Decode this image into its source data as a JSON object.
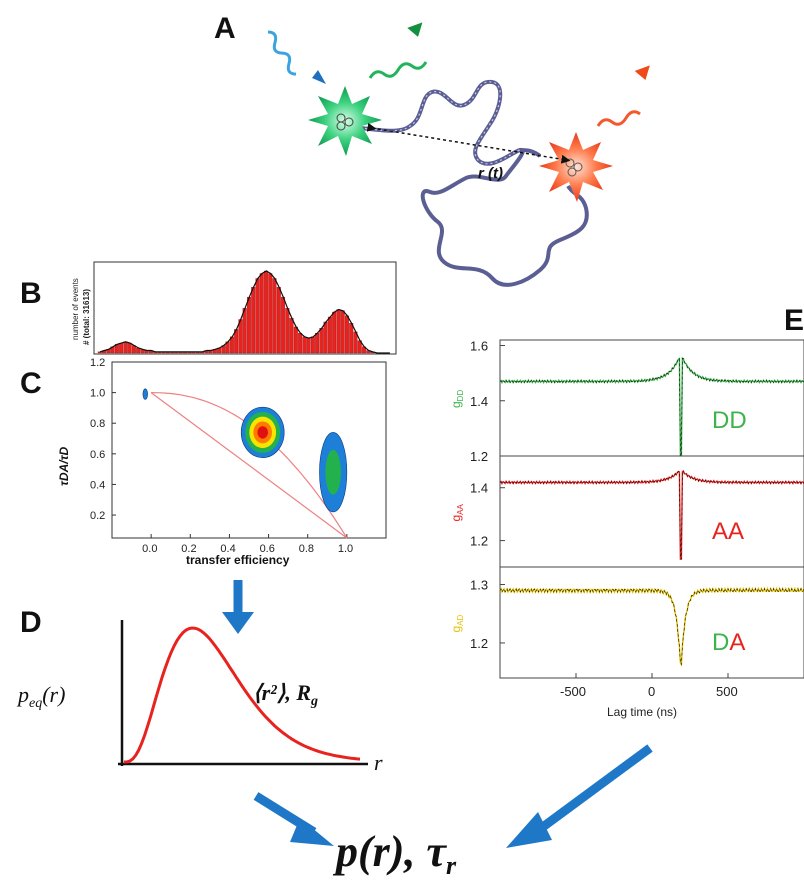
{
  "panels": {
    "a": "A",
    "b": "B",
    "c": "C",
    "d": "D",
    "e": "E"
  },
  "panel_a": {
    "distance_label": "r (t)"
  },
  "panel_b": {
    "ylabel": "number of events",
    "ylabel_total": "# (total: 31613)",
    "bars": [
      1,
      2,
      3,
      5,
      7,
      8,
      9,
      8,
      6,
      4,
      3,
      2,
      2,
      1,
      1,
      1,
      1,
      1,
      1,
      1,
      1,
      1,
      1,
      1,
      1,
      2,
      2,
      3,
      4,
      6,
      9,
      13,
      19,
      27,
      36,
      45,
      53,
      60,
      64,
      66,
      64,
      60,
      53,
      45,
      36,
      28,
      21,
      16,
      13,
      12,
      13,
      16,
      20,
      25,
      29,
      33,
      35,
      34,
      30,
      24,
      17,
      10,
      5,
      2,
      1,
      0,
      0,
      0,
      0
    ]
  },
  "panel_c": {
    "xlabel": "transfer efficiency",
    "ylabel": "τDA/τD",
    "xticks": [
      "0.0",
      "0.2",
      "0.4",
      "0.6",
      "0.8",
      "1.0"
    ],
    "yticks": [
      "0.2",
      "0.4",
      "0.6",
      "0.8",
      "1.0",
      "1.2"
    ],
    "blobs": [
      {
        "name": "main-population",
        "cx": 0.57,
        "cy": 0.74,
        "rx": 0.11,
        "ry": 0.165,
        "levels": [
          "#1e7fd8",
          "#22b14c",
          "#f7e400",
          "#ff7a00",
          "#e01010"
        ]
      },
      {
        "name": "high-efficiency-population",
        "cx": 0.93,
        "cy": 0.48,
        "rx": 0.07,
        "ry": 0.26,
        "levels": [
          "#1e7fd8",
          "#22b14c"
        ]
      },
      {
        "name": "zero-peak",
        "cx": -0.03,
        "cy": 0.99,
        "rx": 0.012,
        "ry": 0.035,
        "levels": [
          "#1e7fd8"
        ]
      }
    ]
  },
  "panel_d": {
    "ylabel": "p",
    "ylabel_sub": "eq",
    "ylabel_arg": "(r)",
    "xlabel": "r",
    "annotation": "⟨r²⟩, R",
    "annotation_sub": "g"
  },
  "panel_e": {
    "xlabel": "Lag time (ns)",
    "xticks": [
      "-500",
      "0",
      "500"
    ],
    "rows": [
      {
        "label": "DD",
        "label_colors": [
          "#3cb44b"
        ],
        "ylabel": "g",
        "ylabel_sub": "DD",
        "ylabel_color": "#3cb44b",
        "yticks": [
          "1.6",
          "1.4",
          "1.2"
        ],
        "line_color": "#3cb44b"
      },
      {
        "label": "AA",
        "label_colors": [
          "#e8231f"
        ],
        "ylabel": "g",
        "ylabel_sub": "AA",
        "ylabel_color": "#e8231f",
        "yticks": [
          "1.4",
          "1.2"
        ],
        "line_color": "#e8231f"
      },
      {
        "label_parts": [
          "D",
          "A"
        ],
        "label_colors": [
          "#3cb44b",
          "#e8231f"
        ],
        "ylabel": "g",
        "ylabel_sub": "AD",
        "ylabel_color": "#e6c200",
        "yticks": [
          "1.3",
          "1.2"
        ],
        "line_color": "#e6c200"
      }
    ]
  },
  "result": {
    "text_p": "p",
    "text_r": "(r), τ",
    "text_sub": "r"
  },
  "colors": {
    "arrow": "#1f77c8",
    "red": "#e8231f",
    "green": "#3cb44b",
    "blue": "#1e7fd8",
    "yellow": "#e6c200",
    "chain": "#5b5e93"
  }
}
